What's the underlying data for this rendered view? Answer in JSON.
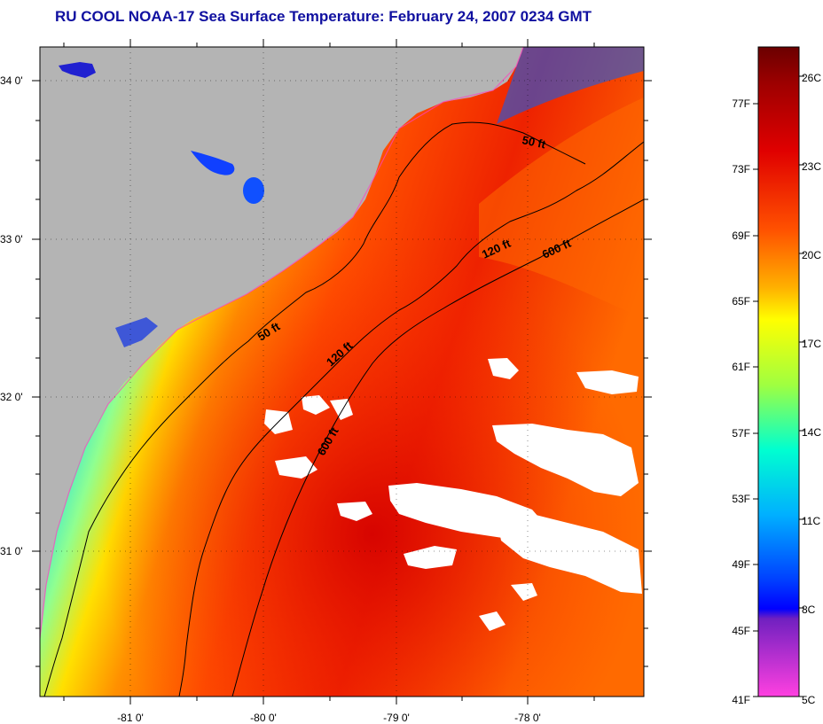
{
  "title": "RU COOL  NOAA-17  Sea Surface Temperature:  February 24, 2007 0234 GMT",
  "map": {
    "lat_labels": [
      "34 0'",
      "33 0'",
      "32 0'",
      "31 0'"
    ],
    "lon_labels": [
      "-81 0'",
      "-80 0'",
      "-79 0'",
      "-78 0'"
    ],
    "contour_labels": {
      "c50a": "50 ft",
      "c50b": "50 ft",
      "c120a": "120 ft",
      "c120b": "120 ft",
      "c600a": "600 ft",
      "c600b": "600 ft"
    },
    "land_color": "#b4b4b4",
    "cloud_color": "#ffffff"
  },
  "colorbar": {
    "fahrenheit_labels": [
      "77F",
      "73F",
      "69F",
      "65F",
      "61F",
      "57F",
      "53F",
      "49F",
      "45F",
      "41F"
    ],
    "celsius_labels": [
      "26C",
      "23C",
      "20C",
      "17C",
      "14C",
      "11C",
      "8C",
      "5C"
    ],
    "colors": [
      "#6b0000",
      "#cc0000",
      "#ff3000",
      "#ff8000",
      "#ffd000",
      "#ffff00",
      "#a0ff40",
      "#00ffd0",
      "#00c0ff",
      "#0060ff",
      "#0000ff",
      "#8000c0",
      "#ff40e0"
    ]
  }
}
